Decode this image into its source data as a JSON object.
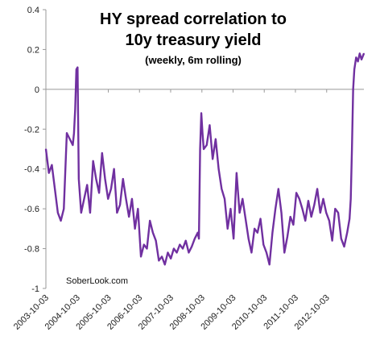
{
  "chart_data": {
    "type": "line",
    "title_line1": "HY spread correlation to",
    "title_line2": "10y treasury yield",
    "subtitle": "(weekly, 6m rolling)",
    "annotation": "SoberLook.com",
    "xlabel": "",
    "ylabel": "",
    "ylim": [
      -1,
      0.4
    ],
    "yticks": [
      0.4,
      0.2,
      0,
      -0.2,
      -0.4,
      -0.6,
      -0.8,
      -1
    ],
    "ytick_labels": [
      "0.4",
      "0.2",
      "0",
      "-0.2",
      "-0.4",
      "-0.6",
      "-0.8",
      "-1"
    ],
    "xtick_labels": [
      "2003-10-03",
      "2004-10-03",
      "2005-10-03",
      "2006-10-03",
      "2007-10-03",
      "2008-10-03",
      "2009-10-03",
      "2010-10-03",
      "2011-10-03",
      "2012-10-03"
    ],
    "xlim": [
      "2003-10-03",
      "2013-12-13"
    ],
    "grid": false,
    "legend": "none",
    "colors": {
      "line": "#7030a0",
      "axis": "#999999"
    },
    "series": [
      {
        "x": [
          "2003-10-03",
          "2003-11-07",
          "2003-12-12",
          "2004-01-16",
          "2004-02-20",
          "2004-03-26",
          "2004-04-30",
          "2004-06-04",
          "2004-07-09",
          "2004-08-13",
          "2004-08-27",
          "2004-09-10",
          "2004-09-24",
          "2004-10-08",
          "2004-10-22",
          "2004-11-19",
          "2004-12-24",
          "2005-01-28",
          "2005-03-04",
          "2005-04-08",
          "2005-05-13",
          "2005-06-17",
          "2005-07-22",
          "2005-08-26",
          "2005-09-30",
          "2005-11-04",
          "2005-12-09",
          "2006-01-13",
          "2006-02-17",
          "2006-03-24",
          "2006-04-28",
          "2006-06-02",
          "2006-07-07",
          "2006-08-11",
          "2006-09-15",
          "2006-10-20",
          "2006-11-24",
          "2006-12-29",
          "2007-02-02",
          "2007-03-09",
          "2007-04-13",
          "2007-05-18",
          "2007-06-22",
          "2007-07-27",
          "2007-08-31",
          "2007-10-05",
          "2007-11-09",
          "2007-12-14",
          "2008-01-18",
          "2008-02-22",
          "2008-03-28",
          "2008-05-02",
          "2008-06-06",
          "2008-07-11",
          "2008-08-15",
          "2008-08-29",
          "2008-09-12",
          "2008-09-26",
          "2008-10-10",
          "2008-10-24",
          "2008-11-28",
          "2009-01-02",
          "2009-02-06",
          "2009-03-13",
          "2009-04-17",
          "2009-05-22",
          "2009-06-26",
          "2009-07-31",
          "2009-09-04",
          "2009-10-09",
          "2009-11-13",
          "2009-12-18",
          "2010-01-22",
          "2010-02-26",
          "2010-04-02",
          "2010-05-07",
          "2010-06-11",
          "2010-07-16",
          "2010-08-20",
          "2010-09-24",
          "2010-10-29",
          "2010-12-03",
          "2011-01-07",
          "2011-02-11",
          "2011-03-18",
          "2011-04-22",
          "2011-05-27",
          "2011-07-01",
          "2011-08-05",
          "2011-09-09",
          "2011-10-14",
          "2011-11-18",
          "2011-12-23",
          "2012-01-27",
          "2012-03-02",
          "2012-04-06",
          "2012-05-11",
          "2012-06-15",
          "2012-07-20",
          "2012-08-24",
          "2012-09-28",
          "2012-11-02",
          "2012-12-07",
          "2013-01-11",
          "2013-02-15",
          "2013-03-22",
          "2013-04-26",
          "2013-05-31",
          "2013-06-28",
          "2013-07-12",
          "2013-07-26",
          "2013-08-09",
          "2013-08-23",
          "2013-09-13",
          "2013-10-04",
          "2013-10-25",
          "2013-11-15",
          "2013-12-13"
        ],
        "y": [
          -0.3,
          -0.42,
          -0.38,
          -0.5,
          -0.62,
          -0.66,
          -0.6,
          -0.22,
          -0.25,
          -0.28,
          -0.22,
          -0.1,
          0.1,
          0.11,
          -0.45,
          -0.62,
          -0.55,
          -0.48,
          -0.62,
          -0.36,
          -0.45,
          -0.52,
          -0.32,
          -0.45,
          -0.55,
          -0.5,
          -0.4,
          -0.62,
          -0.58,
          -0.45,
          -0.55,
          -0.64,
          -0.55,
          -0.7,
          -0.6,
          -0.84,
          -0.78,
          -0.8,
          -0.66,
          -0.72,
          -0.76,
          -0.86,
          -0.84,
          -0.88,
          -0.82,
          -0.85,
          -0.8,
          -0.82,
          -0.78,
          -0.8,
          -0.76,
          -0.82,
          -0.79,
          -0.75,
          -0.72,
          -0.75,
          -0.3,
          -0.12,
          -0.22,
          -0.3,
          -0.28,
          -0.18,
          -0.35,
          -0.25,
          -0.4,
          -0.5,
          -0.55,
          -0.7,
          -0.6,
          -0.75,
          -0.42,
          -0.62,
          -0.55,
          -0.65,
          -0.75,
          -0.82,
          -0.7,
          -0.72,
          -0.65,
          -0.78,
          -0.82,
          -0.88,
          -0.72,
          -0.6,
          -0.5,
          -0.62,
          -0.82,
          -0.74,
          -0.64,
          -0.68,
          -0.52,
          -0.55,
          -0.6,
          -0.66,
          -0.56,
          -0.64,
          -0.58,
          -0.5,
          -0.62,
          -0.55,
          -0.62,
          -0.66,
          -0.76,
          -0.6,
          -0.62,
          -0.75,
          -0.79,
          -0.72,
          -0.65,
          -0.55,
          -0.3,
          0.0,
          0.1,
          0.16,
          0.14,
          0.18,
          0.15,
          0.18
        ]
      }
    ]
  }
}
